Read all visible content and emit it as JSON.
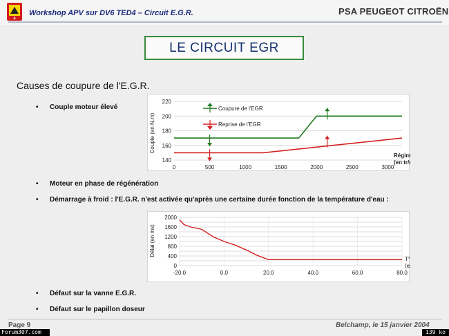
{
  "header": {
    "workshop_title": "Workshop APV sur DV6 TED4 – Circuit E.G.R.",
    "brand": "PSA PEUGEOT CITROËN",
    "logo_text": "A"
  },
  "main_title": "LE CIRCUIT EGR",
  "section_heading": "Causes de coupure de l'E.G.R.",
  "bullets": [
    {
      "symbol": "•",
      "text": "Couple moteur élevé"
    },
    {
      "symbol": "•",
      "text": "Moteur en phase de régénération"
    },
    {
      "symbol": "•",
      "text": "Démarrage à froid : l'E.G.R. n'est activée qu'après une certaine durée fonction de la température d'eau :"
    },
    {
      "symbol": "•",
      "text": "Défaut sur la vanne E.G.R."
    },
    {
      "symbol": "•",
      "text": "Défaut sur le papillon doseur"
    }
  ],
  "footer": {
    "page": "Page 9",
    "date": "Belchamp, le 15 janvier 2004"
  },
  "watermarks": {
    "left": "Forum307.com",
    "right": "139 ko"
  },
  "colors": {
    "green": "#1e7a1e",
    "red": "#d42020",
    "title_blue": "#16326e",
    "box_border": "#3a8a3a"
  },
  "chart_data": [
    {
      "type": "line",
      "ylabel": "Couple (en N.m)",
      "xlabel": "Régime (en tr/min)",
      "x_ticks": [
        "0",
        "500",
        "1000",
        "1500",
        "2000",
        "2500",
        "3000"
      ],
      "y_ticks": [
        "220",
        "200",
        "180",
        "160",
        "140"
      ],
      "xlim": [
        0,
        3200
      ],
      "ylim": [
        140,
        220
      ],
      "series": [
        {
          "name": "Coupure de l'EGR",
          "color": "#1e7a1e",
          "x": [
            0,
            1750,
            2000,
            3200
          ],
          "y": [
            170,
            170,
            200,
            200
          ]
        },
        {
          "name": "Reprise de l'EGR",
          "color": "#d42020",
          "x": [
            0,
            1250,
            3000,
            3200
          ],
          "y": [
            150,
            150,
            168,
            170
          ]
        }
      ],
      "legend": "top-left"
    },
    {
      "type": "line",
      "ylabel": "Délai (en ms)",
      "xlabel": "T° eau (en °C)",
      "x_ticks": [
        "-20.0",
        "0.0",
        "20.0",
        "40.0",
        "60.0",
        "80.0"
      ],
      "y_ticks": [
        "2000",
        "1800",
        "1600",
        "1400",
        "1200",
        "1000",
        "800",
        "600",
        "400",
        "200",
        "0"
      ],
      "xlim": [
        -20,
        80
      ],
      "ylim": [
        0,
        2000
      ],
      "series": [
        {
          "color": "#d42020",
          "x": [
            -20,
            -18,
            -15,
            -10,
            -5,
            0,
            5,
            10,
            15,
            20,
            80
          ],
          "y": [
            1900,
            1700,
            1600,
            1500,
            1200,
            1000,
            850,
            650,
            420,
            250,
            250
          ]
        }
      ],
      "legend": "none"
    }
  ]
}
